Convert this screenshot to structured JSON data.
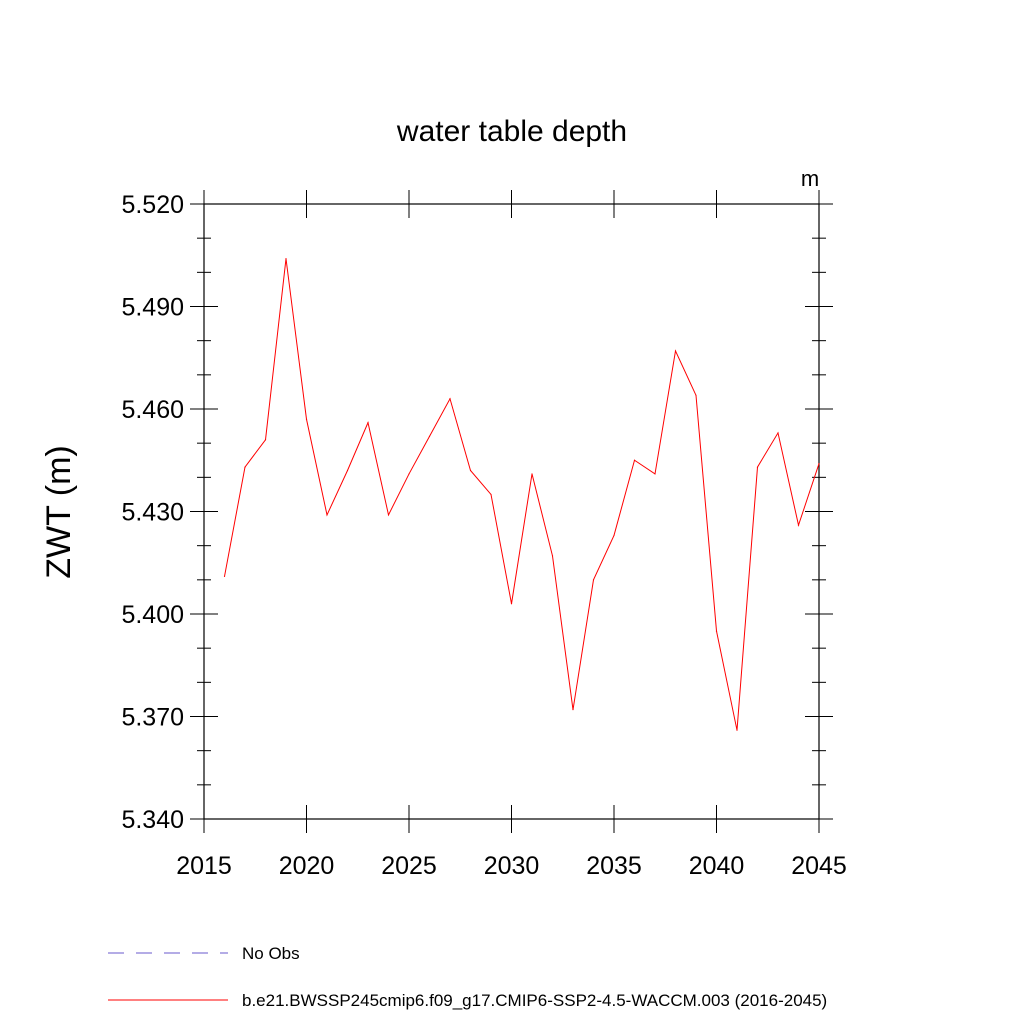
{
  "chart_data": {
    "type": "line",
    "title": "water table depth",
    "units_label": "m",
    "xlabel": "",
    "ylabel": "ZWT  (m)",
    "xlim": [
      2015,
      2045
    ],
    "ylim": [
      5.34,
      5.52
    ],
    "xticks": [
      2015,
      2020,
      2025,
      2030,
      2035,
      2040,
      2045
    ],
    "xtick_labels": [
      "2015",
      "2020",
      "2025",
      "2030",
      "2035",
      "2040",
      "2045"
    ],
    "yticks": [
      5.34,
      5.37,
      5.4,
      5.43,
      5.46,
      5.49,
      5.52
    ],
    "ytick_labels": [
      "5.340",
      "5.370",
      "5.400",
      "5.430",
      "5.460",
      "5.490",
      "5.520"
    ],
    "y_minor_step": 0.01,
    "x_minor_step": 1,
    "grid": false,
    "legend_position": "bottom",
    "series": [
      {
        "name": "No Obs",
        "color": "#6a5acd",
        "dash": "dashed",
        "x": [],
        "values": []
      },
      {
        "name": "b.e21.BWSSP245cmip6.f09_g17.CMIP6-SSP2-4.5-WACCM.003 (2016-2045)",
        "color": "#ff0000",
        "dash": "solid",
        "x": [
          2016,
          2017,
          2018,
          2019,
          2020,
          2021,
          2022,
          2023,
          2024,
          2025,
          2026,
          2027,
          2028,
          2029,
          2030,
          2031,
          2032,
          2033,
          2034,
          2035,
          2036,
          2037,
          2038,
          2039,
          2040,
          2041,
          2042,
          2043,
          2044,
          2045
        ],
        "values": [
          5.411,
          5.443,
          5.451,
          5.504,
          5.457,
          5.429,
          5.442,
          5.456,
          5.429,
          5.441,
          5.452,
          5.463,
          5.442,
          5.435,
          5.403,
          5.441,
          5.417,
          5.372,
          5.41,
          5.423,
          5.445,
          5.441,
          5.477,
          5.464,
          5.395,
          5.366,
          5.443,
          5.453,
          5.426,
          5.444
        ]
      }
    ]
  }
}
